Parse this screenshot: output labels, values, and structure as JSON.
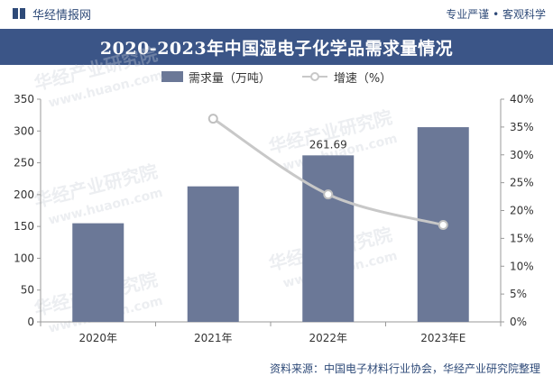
{
  "header": {
    "brand": "华经情报网",
    "slogan": "专业严谨 • 客观科学"
  },
  "watermark": {
    "cn": "华经产业研究院",
    "url": "www.huaon.com"
  },
  "source_note": "资料来源：中国电子材料行业协会，华经产业研究院整理",
  "colors": {
    "bar": "#6b7897",
    "line": "#c8c8c8",
    "title_band": "#3b5587",
    "brand": "#2e4a78"
  },
  "chart_data": {
    "type": "bar",
    "title": "2020-2023年中国湿电子化学品需求量情况",
    "categories": [
      "2020年",
      "2021年",
      "2022年",
      "2023年E"
    ],
    "series": [
      {
        "name": "需求量（万吨）",
        "type": "bar",
        "axis": "left",
        "values": [
          155,
          213,
          261.69,
          306
        ]
      },
      {
        "name": "增速（%）",
        "type": "line",
        "axis": "right",
        "values": [
          null,
          36.5,
          22.9,
          17.4
        ]
      }
    ],
    "data_labels": [
      {
        "category_index": 2,
        "series_index": 0,
        "text": "261.69"
      }
    ],
    "y_left": {
      "ylim": [
        0,
        350
      ],
      "ticks": [
        "0",
        "50",
        "100",
        "150",
        "200",
        "250",
        "300",
        "350"
      ]
    },
    "y_right": {
      "ylim": [
        0,
        40
      ],
      "ticks": [
        "0%",
        "5%",
        "10%",
        "15%",
        "20%",
        "25%",
        "30%",
        "35%",
        "40%"
      ]
    },
    "legend_position": "top-center",
    "grid": false
  }
}
